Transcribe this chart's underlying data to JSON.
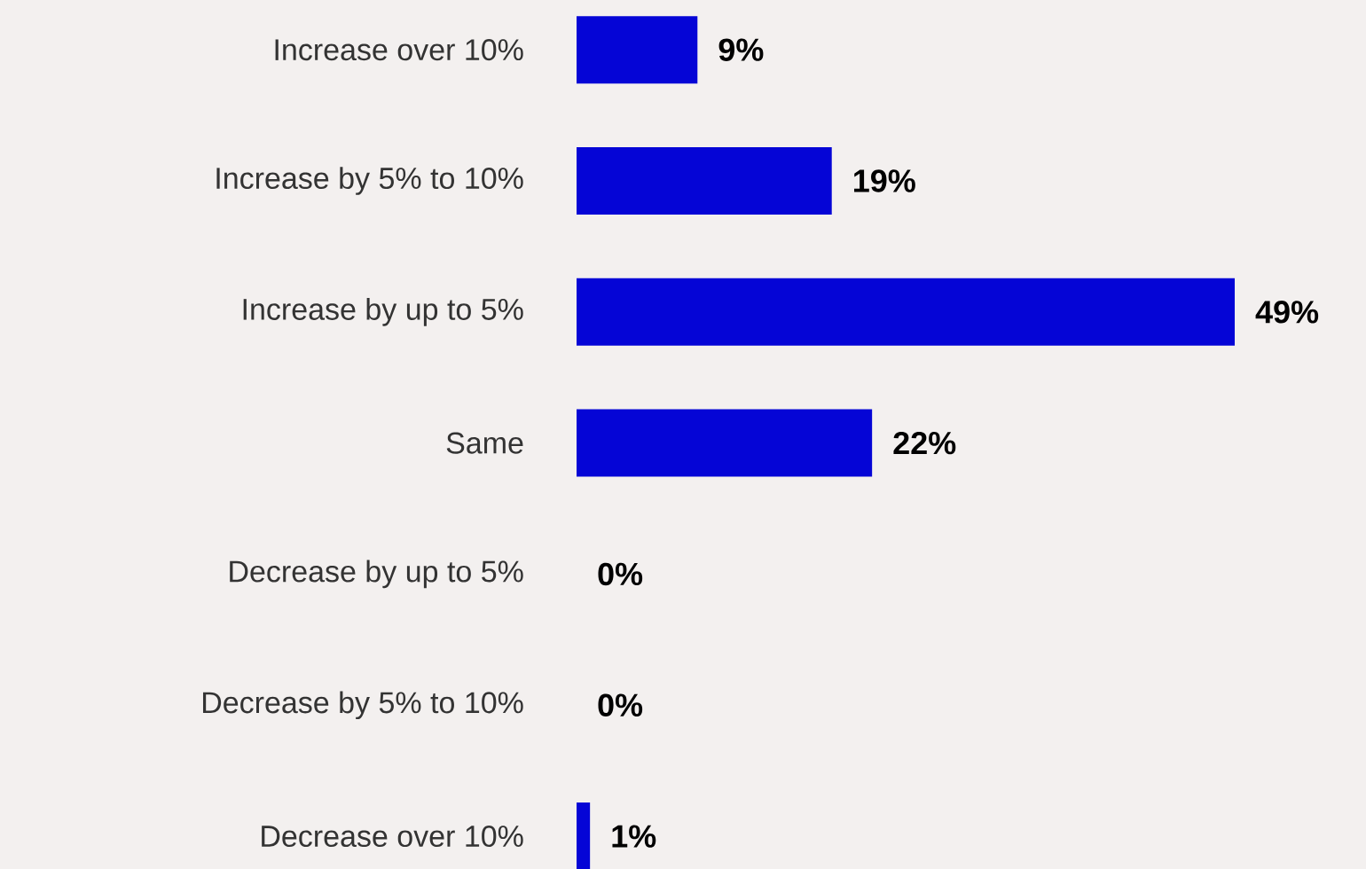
{
  "chart_data": {
    "type": "bar",
    "orientation": "horizontal",
    "categories": [
      "Increase over 10%",
      "Increase by 5% to 10%",
      "Increase by up to 5%",
      "Same",
      "Decrease by up to 5%",
      "Decrease by 5% to 10%",
      "Decrease over 10%"
    ],
    "values": [
      9,
      19,
      49,
      22,
      0,
      0,
      1
    ],
    "value_labels": [
      "9%",
      "19%",
      "49%",
      "22%",
      "0%",
      "0%",
      "1%"
    ],
    "color": "#0505d6"
  }
}
